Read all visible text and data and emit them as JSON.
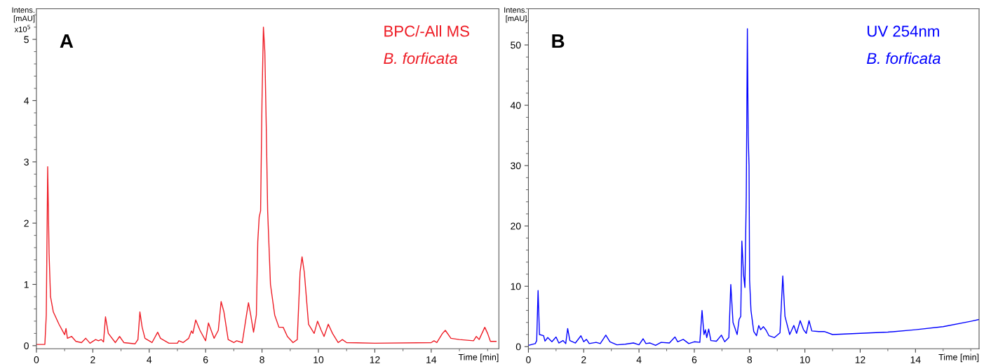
{
  "chart_data": [
    {
      "type": "line",
      "title": "A",
      "xlabel": "Time [min]",
      "ylabel": "Intens.\n[mAU]",
      "annotations": [
        "x10$^{5}$",
        "BPC/-All MS",
        "B. forficata"
      ],
      "xlim": [
        0,
        16.4
      ],
      "ylim": [
        -0.05,
        5.5
      ],
      "xticks": [
        0,
        2,
        4,
        6,
        8,
        10,
        12,
        14
      ],
      "yticks": [
        0,
        1,
        2,
        3,
        4,
        5
      ],
      "grid": false,
      "legend": false,
      "series": [
        {
          "color": "#ee1c25",
          "x": [
            0,
            0.3,
            0.35,
            0.4,
            0.45,
            0.5,
            0.6,
            0.8,
            1.0,
            1.05,
            1.1,
            1.25,
            1.4,
            1.6,
            1.75,
            1.9,
            2.1,
            2.2,
            2.3,
            2.38,
            2.45,
            2.55,
            2.8,
            2.95,
            3.1,
            3.5,
            3.6,
            3.67,
            3.75,
            3.85,
            4.1,
            4.3,
            4.4,
            4.7,
            5.0,
            5.05,
            5.2,
            5.4,
            5.5,
            5.55,
            5.65,
            5.8,
            6.0,
            6.1,
            6.3,
            6.45,
            6.55,
            6.65,
            6.8,
            7.0,
            7.1,
            7.3,
            7.45,
            7.52,
            7.6,
            7.7,
            7.8,
            7.85,
            7.9,
            7.95,
            8.0,
            8.05,
            8.1,
            8.15,
            8.2,
            8.3,
            8.45,
            8.6,
            8.75,
            8.9,
            9.1,
            9.25,
            9.35,
            9.42,
            9.5,
            9.65,
            9.85,
            9.97,
            10.1,
            10.2,
            10.35,
            10.5,
            10.7,
            10.85,
            11.0,
            12.0,
            14.0,
            14.1,
            14.2,
            14.4,
            14.5,
            14.7,
            15.0,
            15.5,
            15.6,
            15.7,
            15.9,
            16.0,
            16.1,
            16.3
          ],
          "values": [
            0.02,
            0.02,
            0.5,
            2.92,
            1.5,
            0.8,
            0.55,
            0.35,
            0.18,
            0.28,
            0.12,
            0.15,
            0.07,
            0.05,
            0.12,
            0.04,
            0.1,
            0.08,
            0.1,
            0.06,
            0.47,
            0.2,
            0.05,
            0.15,
            0.05,
            0.03,
            0.1,
            0.55,
            0.3,
            0.12,
            0.05,
            0.22,
            0.12,
            0.04,
            0.04,
            0.08,
            0.05,
            0.12,
            0.24,
            0.2,
            0.42,
            0.25,
            0.08,
            0.37,
            0.12,
            0.25,
            0.72,
            0.55,
            0.1,
            0.05,
            0.08,
            0.05,
            0.5,
            0.7,
            0.5,
            0.22,
            0.5,
            1.7,
            2.1,
            2.2,
            4.0,
            5.2,
            4.8,
            3.6,
            2.2,
            1.0,
            0.5,
            0.3,
            0.3,
            0.15,
            0.05,
            0.1,
            1.2,
            1.45,
            1.2,
            0.35,
            0.2,
            0.4,
            0.25,
            0.15,
            0.35,
            0.2,
            0.05,
            0.1,
            0.05,
            0.04,
            0.05,
            0.08,
            0.05,
            0.2,
            0.25,
            0.12,
            0.1,
            0.08,
            0.15,
            0.1,
            0.3,
            0.2,
            0.07,
            0.07
          ]
        }
      ]
    },
    {
      "type": "line",
      "title": "B",
      "xlabel": "Time [min]",
      "ylabel": "Intens.\n[mAU]",
      "annotations": [
        "UV 254nm",
        "B. forficata"
      ],
      "xlim": [
        0,
        16.3
      ],
      "ylim": [
        -0.35,
        56
      ],
      "xticks": [
        0,
        2,
        4,
        6,
        8,
        10,
        12,
        14
      ],
      "yticks": [
        0,
        10,
        20,
        30,
        40,
        50
      ],
      "grid": false,
      "legend": false,
      "series": [
        {
          "color": "#0000ff",
          "x": [
            0,
            0.25,
            0.3,
            0.35,
            0.4,
            0.55,
            0.6,
            0.7,
            0.85,
            1.0,
            1.1,
            1.25,
            1.35,
            1.42,
            1.5,
            1.7,
            1.9,
            2.0,
            2.1,
            2.2,
            2.45,
            2.6,
            2.8,
            2.95,
            3.2,
            3.5,
            3.8,
            4.0,
            4.15,
            4.25,
            4.4,
            4.6,
            4.8,
            5.1,
            5.3,
            5.4,
            5.6,
            5.8,
            6.0,
            6.2,
            6.28,
            6.35,
            6.4,
            6.45,
            6.52,
            6.6,
            6.8,
            6.98,
            7.1,
            7.25,
            7.32,
            7.4,
            7.55,
            7.62,
            7.68,
            7.72,
            7.78,
            7.83,
            7.88,
            7.92,
            7.95,
            7.98,
            8.0,
            8.05,
            8.15,
            8.25,
            8.33,
            8.4,
            8.5,
            8.6,
            8.7,
            8.9,
            9.1,
            9.2,
            9.28,
            9.45,
            9.6,
            9.7,
            9.83,
            9.95,
            10.05,
            10.15,
            10.25,
            10.5,
            10.7,
            11.0,
            12.0,
            13.0,
            14.0,
            15.0,
            16.0,
            16.3
          ],
          "values": [
            0.2,
            0.5,
            1.0,
            9.3,
            2.0,
            1.8,
            0.9,
            1.5,
            0.8,
            1.6,
            0.6,
            1.0,
            0.5,
            3.0,
            1.0,
            0.6,
            1.8,
            0.8,
            1.2,
            0.5,
            0.7,
            0.5,
            1.9,
            0.8,
            0.3,
            0.4,
            0.6,
            0.3,
            1.3,
            0.5,
            0.6,
            0.2,
            0.7,
            0.6,
            1.6,
            0.8,
            1.2,
            0.5,
            0.8,
            0.7,
            6.0,
            2.0,
            2.8,
            1.5,
            2.9,
            1.0,
            0.9,
            1.9,
            0.8,
            1.5,
            10.3,
            4.0,
            2.0,
            4.5,
            5.0,
            17.5,
            12,
            9.8,
            25,
            52.7,
            35,
            30,
            11,
            6,
            2.5,
            1.8,
            3.5,
            2.8,
            3.3,
            2.7,
            1.8,
            1.5,
            2.3,
            11.7,
            5.0,
            2.0,
            3.5,
            2.2,
            4.3,
            2.8,
            2.2,
            4.3,
            2.6,
            2.5,
            2.5,
            2.0,
            2.2,
            2.4,
            2.8,
            3.3,
            4.2,
            4.5
          ]
        }
      ]
    }
  ]
}
